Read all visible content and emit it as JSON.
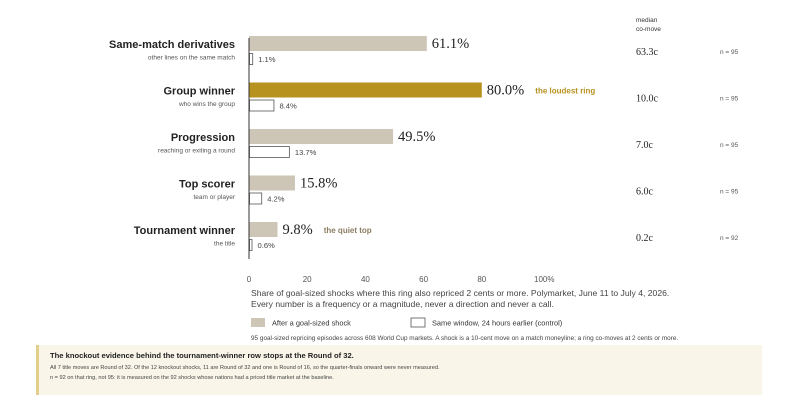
{
  "chart_data": {
    "type": "bar",
    "orientation": "horizontal",
    "xlim": [
      0,
      100
    ],
    "x_ticks": [
      "0",
      "20",
      "40",
      "60",
      "80",
      "100%"
    ],
    "categories": [
      {
        "label": "Same-match derivatives",
        "sublabel": "other lines on the same match",
        "shock_label": "61.1%",
        "control_label": "1.1%",
        "median": "63.3c",
        "n": "n = 95",
        "annotation": ""
      },
      {
        "label": "Group winner",
        "sublabel": "who wins the group",
        "shock_label": "80.0%",
        "control_label": "8.4%",
        "median": "10.0c",
        "n": "n = 95",
        "annotation": "the loudest ring"
      },
      {
        "label": "Progression",
        "sublabel": "reaching or exiting a round",
        "shock_label": "49.5%",
        "control_label": "13.7%",
        "median": "7.0c",
        "n": "n = 95",
        "annotation": ""
      },
      {
        "label": "Top scorer",
        "sublabel": "team or player",
        "shock_label": "15.8%",
        "control_label": "4.2%",
        "median": "6.0c",
        "n": "n = 95",
        "annotation": ""
      },
      {
        "label": "Tournament winner",
        "sublabel": "the title",
        "shock_label": "9.8%",
        "control_label": "0.6%",
        "median": "0.2c",
        "n": "n = 92",
        "annotation": "the quiet top"
      }
    ],
    "series": [
      {
        "name": "After a goal-sized shock",
        "values": [
          61.1,
          80.0,
          49.5,
          15.8,
          9.8
        ]
      },
      {
        "name": "Same window, 24 hours earlier (control)",
        "values": [
          1.1,
          8.4,
          13.7,
          4.2,
          0.6
        ]
      }
    ],
    "highlight_index": 1,
    "median_header_line1": "median",
    "median_header_line2": "co-move",
    "xlabel_line1": "Share of goal-sized shocks where this ring also repriced 2 cents or more. Polymarket, June 11 to July 4, 2026.",
    "xlabel_line2": "Every number is a frequency or a magnitude, never a direction and never a call.",
    "legend_position": "bottom-left",
    "footnote": "95 goal-sized repricing episodes across 608 World Cup markets. A shock is a 10-cent move on a match moneyline; a ring co-moves at 2 cents or more.",
    "colors": {
      "shock": "#cdc5b6",
      "highlight": "#b8921f",
      "control_fill": "#ffffff",
      "control_stroke": "#555555",
      "axis": "#333333",
      "text": "#222222",
      "muted": "#555555"
    }
  },
  "note": {
    "title": "The knockout evidence behind the tournament-winner row stops at the Round of 32.",
    "line1": "All 7 title moves are Round of 32. Of the 12 knockout shocks, 11 are Round of 32 and one is Round of 16, so the quarter-finals onward were never measured.",
    "line2": "n = 92 on that ring, not 95: it is measured on the 92 shocks whose nations had a priced title market at the baseline."
  }
}
